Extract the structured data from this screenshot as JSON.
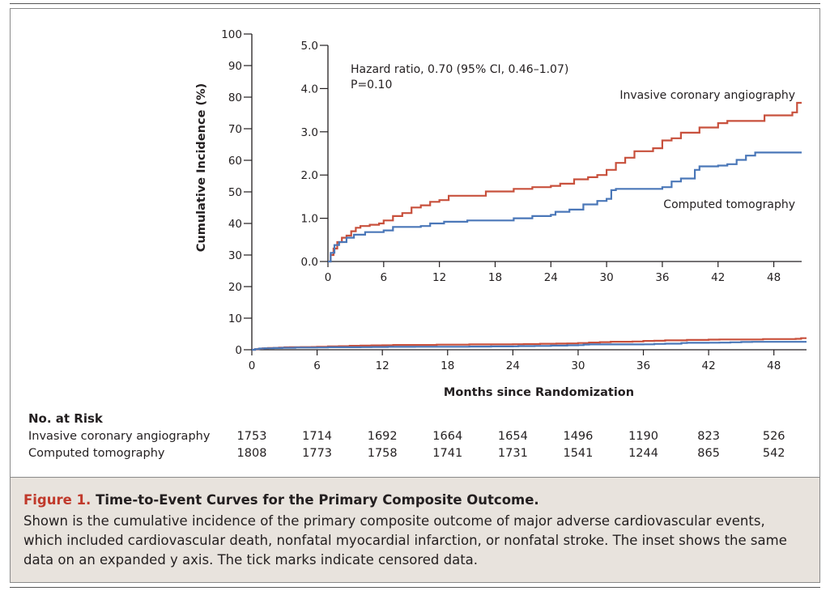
{
  "chart_data": {
    "type": "line",
    "xlabel": "Months since Randomization",
    "ylabel": "Cumulative Incidence (%)",
    "xlim": [
      0,
      51
    ],
    "ylim": [
      0,
      100
    ],
    "x_ticks": [
      0,
      6,
      12,
      18,
      24,
      30,
      36,
      42,
      48
    ],
    "y_ticks": [
      0,
      10,
      20,
      30,
      40,
      50,
      60,
      70,
      80,
      90,
      100
    ],
    "inset": {
      "xlim": [
        0,
        51
      ],
      "ylim": [
        0,
        5
      ],
      "x_ticks": [
        0,
        6,
        12,
        18,
        24,
        30,
        36,
        42,
        48
      ],
      "y_ticks": [
        "0.0",
        "1.0",
        "2.0",
        "3.0",
        "4.0",
        "5.0"
      ],
      "annotation_lines": [
        "Hazard ratio, 0.70 (95% CI, 0.46–1.07)",
        "P=0.10"
      ]
    },
    "series": [
      {
        "name": "Invasive coronary angiography",
        "color": "#c8503c",
        "points": [
          [
            0,
            0.0
          ],
          [
            0.3,
            0.15
          ],
          [
            0.6,
            0.3
          ],
          [
            1.0,
            0.45
          ],
          [
            1.5,
            0.55
          ],
          [
            2.0,
            0.6
          ],
          [
            2.5,
            0.7
          ],
          [
            3.0,
            0.78
          ],
          [
            3.5,
            0.82
          ],
          [
            4.5,
            0.85
          ],
          [
            5.5,
            0.88
          ],
          [
            6.0,
            0.95
          ],
          [
            7.0,
            1.05
          ],
          [
            8.0,
            1.12
          ],
          [
            9.0,
            1.25
          ],
          [
            10.0,
            1.3
          ],
          [
            11.0,
            1.38
          ],
          [
            12.0,
            1.42
          ],
          [
            13.0,
            1.52
          ],
          [
            14.0,
            1.52
          ],
          [
            16.0,
            1.52
          ],
          [
            17.0,
            1.62
          ],
          [
            19.0,
            1.62
          ],
          [
            20.0,
            1.68
          ],
          [
            22.0,
            1.72
          ],
          [
            24.0,
            1.75
          ],
          [
            25.0,
            1.8
          ],
          [
            26.5,
            1.9
          ],
          [
            28.0,
            1.95
          ],
          [
            29.0,
            2.0
          ],
          [
            30.0,
            2.12
          ],
          [
            31.0,
            2.28
          ],
          [
            32.0,
            2.4
          ],
          [
            33.0,
            2.55
          ],
          [
            35.0,
            2.62
          ],
          [
            36.0,
            2.8
          ],
          [
            37.0,
            2.85
          ],
          [
            38.0,
            2.98
          ],
          [
            40.0,
            3.1
          ],
          [
            42.0,
            3.2
          ],
          [
            43.0,
            3.25
          ],
          [
            46.0,
            3.25
          ],
          [
            47.0,
            3.38
          ],
          [
            50.0,
            3.45
          ],
          [
            50.5,
            3.67
          ],
          [
            51.0,
            3.67
          ]
        ]
      },
      {
        "name": "Computed tomography",
        "color": "#4a77b8",
        "points": [
          [
            0,
            0.0
          ],
          [
            0.3,
            0.2
          ],
          [
            0.7,
            0.38
          ],
          [
            1.2,
            0.45
          ],
          [
            2.0,
            0.55
          ],
          [
            2.8,
            0.62
          ],
          [
            4.0,
            0.68
          ],
          [
            6.0,
            0.72
          ],
          [
            7.0,
            0.8
          ],
          [
            10.0,
            0.82
          ],
          [
            11.0,
            0.88
          ],
          [
            12.5,
            0.92
          ],
          [
            15.0,
            0.95
          ],
          [
            18.0,
            0.95
          ],
          [
            20.0,
            1.0
          ],
          [
            22.0,
            1.05
          ],
          [
            24.0,
            1.08
          ],
          [
            24.5,
            1.15
          ],
          [
            26.0,
            1.2
          ],
          [
            27.0,
            1.2
          ],
          [
            27.5,
            1.32
          ],
          [
            29.0,
            1.4
          ],
          [
            30.0,
            1.45
          ],
          [
            30.5,
            1.65
          ],
          [
            31.0,
            1.68
          ],
          [
            34.0,
            1.68
          ],
          [
            36.0,
            1.72
          ],
          [
            37.0,
            1.85
          ],
          [
            38.0,
            1.92
          ],
          [
            39.5,
            2.12
          ],
          [
            40.0,
            2.2
          ],
          [
            42.0,
            2.22
          ],
          [
            43.0,
            2.25
          ],
          [
            44.0,
            2.35
          ],
          [
            45.0,
            2.45
          ],
          [
            46.0,
            2.52
          ],
          [
            51.0,
            2.52
          ]
        ]
      }
    ]
  },
  "risk_table": {
    "heading": "No. at Risk",
    "rows": [
      {
        "label": "Invasive coronary angiography",
        "values": [
          "1753",
          "1714",
          "1692",
          "1664",
          "1654",
          "1496",
          "1190",
          "823",
          "526"
        ]
      },
      {
        "label": "Computed tomography",
        "values": [
          "1808",
          "1773",
          "1758",
          "1741",
          "1731",
          "1541",
          "1244",
          "865",
          "542"
        ]
      }
    ]
  },
  "caption": {
    "label": "Figure 1.",
    "title": "Time-to-Event Curves for the Primary Composite Outcome.",
    "body": "Shown is the cumulative incidence of the primary composite outcome of major adverse cardiovascular events, which included cardiovascular death, nonfatal myocardial infarction, or nonfatal stroke. The inset shows the same data on an expanded y axis. The tick marks indicate censored data."
  },
  "colors": {
    "caption_label": "#c0392b",
    "caption_bg": "#e8e3dd"
  }
}
